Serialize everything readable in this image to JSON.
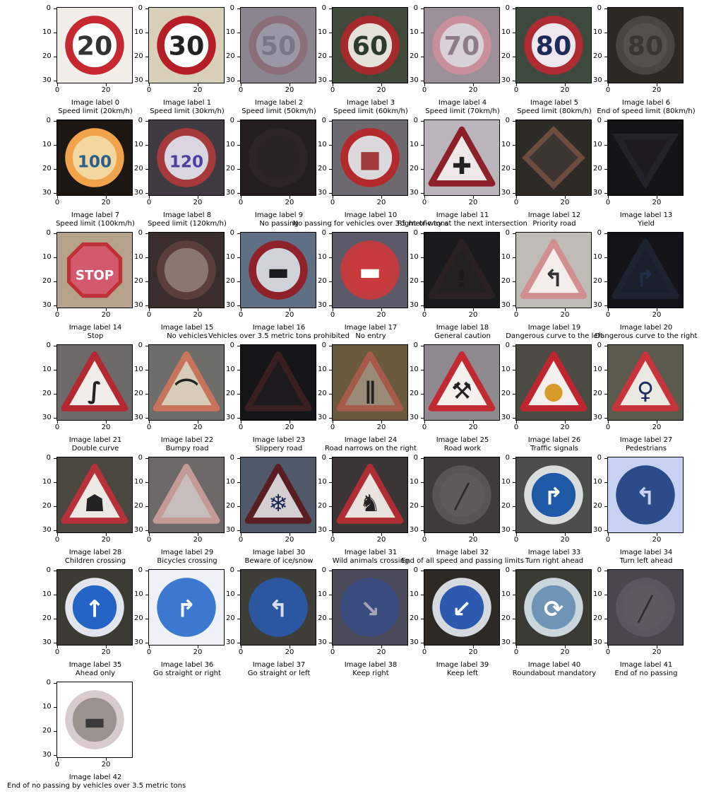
{
  "axis": {
    "y_ticks": [
      "0",
      "10",
      "20",
      "30"
    ],
    "x_ticks": [
      "0",
      "20"
    ]
  },
  "panels": [
    {
      "label": "Image label 0",
      "name": "Speed limit (20km/h)",
      "bg": "#f1eeea",
      "shape": "circle",
      "ring": "#c7272f",
      "fill": "#ffffff",
      "glyph": "20",
      "glyph_color": "#333333"
    },
    {
      "label": "Image label 1",
      "name": "Speed limit (30km/h)",
      "bg": "#d8d0b8",
      "shape": "circle",
      "ring": "#b51e24",
      "fill": "#ffffff",
      "glyph": "30",
      "glyph_color": "#222222"
    },
    {
      "label": "Image label 2",
      "name": "Speed limit (50km/h)",
      "bg": "#8a8590",
      "shape": "circle",
      "ring": "#8a6e7a",
      "fill": "#9b98a6",
      "glyph": "50",
      "glyph_color": "#7a7686"
    },
    {
      "label": "Image label 3",
      "name": "Speed limit (60km/h)",
      "bg": "#3f4a3a",
      "shape": "circle",
      "ring": "#a42a2b",
      "fill": "#e4e2d8",
      "glyph": "60",
      "glyph_color": "#2c3b2c"
    },
    {
      "label": "Image label 4",
      "name": "Speed limit (70km/h)",
      "bg": "#9b8f98",
      "shape": "circle",
      "ring": "#c98f9a",
      "fill": "#d8d1d7",
      "glyph": "70",
      "glyph_color": "#8e7b88"
    },
    {
      "label": "Image label 5",
      "name": "Speed limit (80km/h)",
      "bg": "#3d4a3d",
      "shape": "circle",
      "ring": "#b12b33",
      "fill": "#ece8ee",
      "glyph": "80",
      "glyph_color": "#1e2a5a"
    },
    {
      "label": "Image label 6",
      "name": "End of speed limit (80km/h)",
      "bg": "#2c2823",
      "shape": "circle",
      "ring": "#4a4540",
      "fill": "#55504a",
      "glyph": "80",
      "glyph_color": "#3a3632"
    },
    {
      "label": "Image label 7",
      "name": "Speed limit (100km/h)",
      "bg": "#1d1713",
      "shape": "circle",
      "ring": "#f0a34a",
      "fill": "#f3d6a0",
      "glyph": "100",
      "glyph_color": "#2a5f8a"
    },
    {
      "label": "Image label 8",
      "name": "Speed limit (120km/h)",
      "bg": "#3e3a40",
      "shape": "circle",
      "ring": "#a53a3a",
      "fill": "#d9d6e2",
      "glyph": "120",
      "glyph_color": "#4e3ea0"
    },
    {
      "label": "Image label 9",
      "name": "No passing",
      "bg": "#241d1e",
      "shape": "circle",
      "ring": "#2f2425",
      "fill": "#2a2223",
      "glyph": "",
      "glyph_color": "#000000"
    },
    {
      "label": "Image label 10",
      "name": "No passing for vehicles over 3.5 metric tons",
      "bg": "#6c6a6e",
      "shape": "circle",
      "ring": "#b42a2c",
      "fill": "#dcd9dc",
      "glyph": "■",
      "glyph_color": "#a13a3a"
    },
    {
      "label": "Image label 11",
      "name": "Right-of-way at the next intersection",
      "bg": "#b9b5bb",
      "shape": "triangle",
      "ring": "#8c1f27",
      "fill": "#efe8e8",
      "glyph": "✚",
      "glyph_color": "#222222"
    },
    {
      "label": "Image label 12",
      "name": "Priority road",
      "bg": "#2e2a26",
      "shape": "diamond",
      "ring": "#6b4c3e",
      "fill": "#3c3530",
      "glyph": "",
      "glyph_color": "#000000"
    },
    {
      "label": "Image label 13",
      "name": "Yield",
      "bg": "#141417",
      "shape": "invtriangle",
      "ring": "#25232a",
      "fill": "#1d1b21",
      "glyph": "",
      "glyph_color": "#000000"
    },
    {
      "label": "Image label 14",
      "name": "Stop",
      "bg": "#b6a28a",
      "shape": "octagon",
      "ring": "#c03038",
      "fill": "#d35a6c",
      "glyph": "STOP",
      "glyph_color": "#ffffff"
    },
    {
      "label": "Image label 15",
      "name": "No vehicles",
      "bg": "#3a2e2c",
      "shape": "circle",
      "ring": "#5a3e3c",
      "fill": "#8b7772",
      "glyph": "",
      "glyph_color": "#000000"
    },
    {
      "label": "Image label 16",
      "name": "Vehicles over 3.5 metric tons prohibited",
      "bg": "#5e6f86",
      "shape": "circle",
      "ring": "#8f2229",
      "fill": "#cfd2d8",
      "glyph": "▬",
      "glyph_color": "#1c1c20"
    },
    {
      "label": "Image label 17",
      "name": "No entry",
      "bg": "#5a5a68",
      "shape": "circle",
      "ring": "#c23b3f",
      "fill": "#c93a3d",
      "glyph": "▬",
      "glyph_color": "#ffffff"
    },
    {
      "label": "Image label 18",
      "name": "General caution",
      "bg": "#1a1a1d",
      "shape": "triangle",
      "ring": "#2b2022",
      "fill": "#242022",
      "glyph": "!",
      "glyph_color": "#1a1a1a"
    },
    {
      "label": "Image label 19",
      "name": "Dangerous curve to the left",
      "bg": "#bfbcb6",
      "shape": "triangle",
      "ring": "#d28f8f",
      "fill": "#f3eeea",
      "glyph": "↰",
      "glyph_color": "#333333"
    },
    {
      "label": "Image label 20",
      "name": "Dangerous curve to the right",
      "bg": "#121419",
      "shape": "triangle",
      "ring": "#1d2430",
      "fill": "#1a2029",
      "glyph": "↱",
      "glyph_color": "#1f2e46"
    },
    {
      "label": "Image label 21",
      "name": "Double curve",
      "bg": "#6d6a6a",
      "shape": "triangle",
      "ring": "#b3292f",
      "fill": "#f1eee9",
      "glyph": "∫",
      "glyph_color": "#222222"
    },
    {
      "label": "Image label 22",
      "name": "Bumpy road",
      "bg": "#6d6e69",
      "shape": "triangle",
      "ring": "#c8735a",
      "fill": "#d6ccba",
      "glyph": "⌒",
      "glyph_color": "#222222"
    },
    {
      "label": "Image label 23",
      "name": "Slippery road",
      "bg": "#151417",
      "shape": "triangle",
      "ring": "#3a1e22",
      "fill": "#1c1a1d",
      "glyph": "",
      "glyph_color": "#000000"
    },
    {
      "label": "Image label 24",
      "name": "Road narrows on the right",
      "bg": "#6a5a3c",
      "shape": "triangle",
      "ring": "#a85a4a",
      "fill": "#9a8a78",
      "glyph": "∥",
      "glyph_color": "#222222"
    },
    {
      "label": "Image label 25",
      "name": "Road work",
      "bg": "#8e8a90",
      "shape": "triangle",
      "ring": "#c02a30",
      "fill": "#f4f0ec",
      "glyph": "⚒",
      "glyph_color": "#222222"
    },
    {
      "label": "Image label 26",
      "name": "Traffic signals",
      "bg": "#4b4a43",
      "shape": "triangle",
      "ring": "#c0262f",
      "fill": "#f2efec",
      "glyph": "●",
      "glyph_color": "#d99a2c"
    },
    {
      "label": "Image label 27",
      "name": "Pedestrians",
      "bg": "#5a5b4c",
      "shape": "triangle",
      "ring": "#c8343b",
      "fill": "#eaeae3",
      "glyph": "♀",
      "glyph_color": "#1e2a60"
    },
    {
      "label": "Image label 28",
      "name": "Children crossing",
      "bg": "#4a473e",
      "shape": "triangle",
      "ring": "#b8313a",
      "fill": "#ece8e3",
      "glyph": "☗",
      "glyph_color": "#222222"
    },
    {
      "label": "Image label 29",
      "name": "Bicycles crossing",
      "bg": "#6d6968",
      "shape": "triangle",
      "ring": "#c49a96",
      "fill": "#c7bdbb",
      "glyph": "",
      "glyph_color": "#000000"
    },
    {
      "label": "Image label 30",
      "name": "Beware of ice/snow",
      "bg": "#50596a",
      "shape": "triangle",
      "ring": "#5a1d22",
      "fill": "#d4d0d2",
      "glyph": "❄",
      "glyph_color": "#1c2b52"
    },
    {
      "label": "Image label 31",
      "name": "Wild animals crossing",
      "bg": "#3b3635",
      "shape": "triangle",
      "ring": "#b02d34",
      "fill": "#e9e3de",
      "glyph": "♞",
      "glyph_color": "#222222"
    },
    {
      "label": "Image label 32",
      "name": "End of all speed and passing limits",
      "bg": "#3d3c3b",
      "shape": "circle",
      "ring": "#585654",
      "fill": "#5d5b59",
      "glyph": "╱",
      "glyph_color": "#2a2928"
    },
    {
      "label": "Image label 33",
      "name": "Turn right ahead",
      "bg": "#4a4f4a",
      "shape": "circle",
      "ring": "#dadddc",
      "fill": "#1f5aa8",
      "glyph": "↱",
      "glyph_color": "#ffffff"
    },
    {
      "label": "Image label 34",
      "name": "Turn left ahead",
      "bg": "#c7d2f2",
      "shape": "circle",
      "ring": "#2c4b88",
      "fill": "#2c4b88",
      "glyph": "↰",
      "glyph_color": "#c7d2f2"
    },
    {
      "label": "Image label 35",
      "name": "Ahead only",
      "bg": "#3b3a33",
      "shape": "circle",
      "ring": "#e2e6ec",
      "fill": "#2364c6",
      "glyph": "↑",
      "glyph_color": "#ffffff"
    },
    {
      "label": "Image label 36",
      "name": "Go straight or right",
      "bg": "#eef1f7",
      "shape": "circle",
      "ring": "#3b7ad0",
      "fill": "#3b7ad0",
      "glyph": "↱",
      "glyph_color": "#ffffff"
    },
    {
      "label": "Image label 37",
      "name": "Go straight or left",
      "bg": "#3f3d37",
      "shape": "circle",
      "ring": "#2a57a0",
      "fill": "#2a57a0",
      "glyph": "↰",
      "glyph_color": "#d8dde8"
    },
    {
      "label": "Image label 38",
      "name": "Keep right",
      "bg": "#4a4a58",
      "shape": "circle",
      "ring": "#3a4c80",
      "fill": "#3a4c80",
      "glyph": "↘",
      "glyph_color": "#a4a7b8"
    },
    {
      "label": "Image label 39",
      "name": "Keep left",
      "bg": "#2d2a26",
      "shape": "circle",
      "ring": "#d6d9de",
      "fill": "#2b5aae",
      "glyph": "↙",
      "glyph_color": "#ffffff"
    },
    {
      "label": "Image label 40",
      "name": "Roundabout mandatory",
      "bg": "#3a3a34",
      "shape": "circle",
      "ring": "#c9d6dc",
      "fill": "#6f94b6",
      "glyph": "⟳",
      "glyph_color": "#ffffff"
    },
    {
      "label": "Image label 41",
      "name": "End of no passing",
      "bg": "#4a4650",
      "shape": "circle",
      "ring": "#5a5560",
      "fill": "#5d5963",
      "glyph": "╱",
      "glyph_color": "#2c2a30"
    },
    {
      "label": "Image label 42",
      "name": "End of no passing by vehicles over 3.5 metric tons",
      "bg": "#ffffff",
      "shape": "circle",
      "ring": "#d7cccb",
      "fill": "#9b928d",
      "glyph": "▬",
      "glyph_color": "#3c3a38"
    }
  ]
}
